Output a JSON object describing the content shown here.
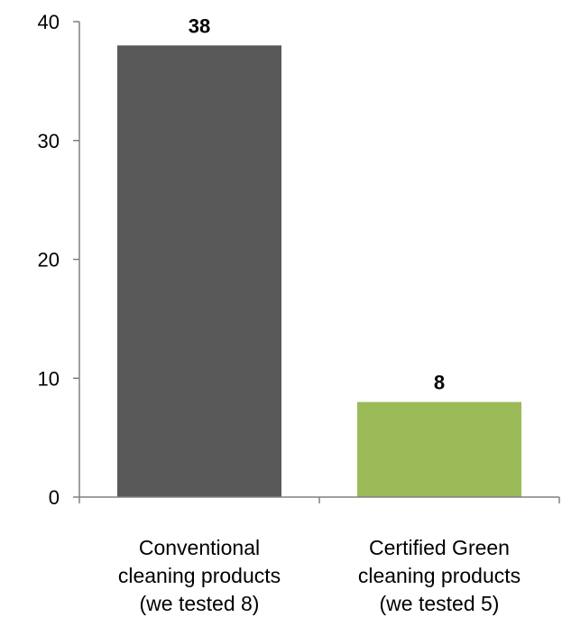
{
  "chart_data": {
    "type": "bar",
    "title": "",
    "xlabel": "",
    "ylabel": "",
    "ylim": [
      0,
      40
    ],
    "yticks": [
      0,
      10,
      20,
      30,
      40
    ],
    "grid": false,
    "legend": "none",
    "categories": [
      [
        "Conventional",
        "cleaning products",
        "(we tested 8)"
      ],
      [
        "Certified Green",
        "cleaning products",
        "(we tested 5)"
      ]
    ],
    "values": [
      38,
      8
    ],
    "value_labels": [
      "38",
      "8"
    ],
    "colors": [
      "#595959",
      "#9bbb59"
    ]
  }
}
